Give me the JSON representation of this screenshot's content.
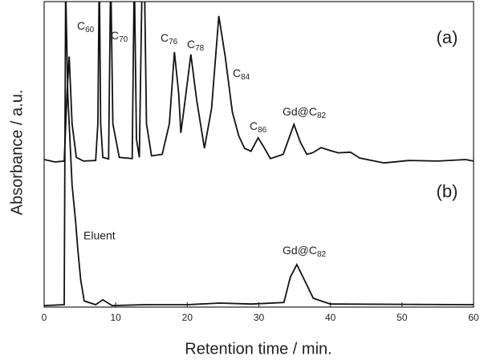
{
  "chart_data": {
    "type": "line",
    "xlabel": "Retention time / min.",
    "ylabel": "Absorbance / a.u.",
    "xlim": [
      0,
      60
    ],
    "xticks": [
      0,
      10,
      20,
      30,
      40,
      50,
      60
    ],
    "ylim": [
      0,
      100
    ],
    "grid": false,
    "color": "#111111",
    "series": [
      {
        "name": "(a)",
        "color": "#111111",
        "x": [
          0,
          1.5,
          2.8,
          3.2,
          3.5,
          3.9,
          4.5,
          5.5,
          7.2,
          7.5,
          7.7,
          7.9,
          8.2,
          9.0,
          9.3,
          9.6,
          10.5,
          12.3,
          12.6,
          12.9,
          13.3,
          13.7,
          14.0,
          14.3,
          15.0,
          16.5,
          17.5,
          18.2,
          18.8,
          19.1,
          19.6,
          20.5,
          21.3,
          22.4,
          23.4,
          24.4,
          25.3,
          26.3,
          27.2,
          28.0,
          28.9,
          29.9,
          30.8,
          31.6,
          33.4,
          34.9,
          35.8,
          36.7,
          37.5,
          38.7,
          40.0,
          41.1,
          42.8,
          44.1,
          47.5,
          51.0,
          55.0,
          58.9,
          60
        ],
        "values": [
          48.3,
          47.5,
          47.8,
          70,
          82,
          60,
          49,
          47.8,
          48,
          60,
          110,
          60,
          49,
          48.5,
          110,
          60,
          49,
          48.6,
          110,
          55,
          49,
          110,
          110,
          60,
          49.5,
          50,
          60,
          83.5,
          70,
          57,
          66,
          82.7,
          68,
          52,
          65,
          95.3,
          82,
          63.8,
          56,
          52,
          51,
          55.4,
          52,
          48.6,
          50,
          59.8,
          54,
          50,
          50.5,
          52.2,
          51.2,
          50.5,
          50.7,
          48.8,
          47.2,
          48,
          47.8,
          48.3,
          47.8
        ]
      },
      {
        "name": "(b)",
        "color": "#111111",
        "x": [
          0,
          2.8,
          3.0,
          3.3,
          3.9,
          4.4,
          4.7,
          5.1,
          5.6,
          7.2,
          8.2,
          9.5,
          14.0,
          20.0,
          24.5,
          29.0,
          33.5,
          34.4,
          35.3,
          36.4,
          37.6,
          40.0,
          60
        ],
        "values": [
          0.5,
          0.8,
          105,
          70,
          40,
          28,
          19,
          9,
          2,
          0.8,
          2.4,
          0.5,
          0.8,
          0.8,
          1.3,
          1.0,
          1.5,
          9.8,
          13.9,
          8.7,
          2.9,
          1.0,
          0.8
        ]
      }
    ],
    "annotations": [
      "C60",
      "C70",
      "C76",
      "C78",
      "C84",
      "C86",
      "Gd@C82",
      "Eluent",
      "Gd@C82"
    ]
  }
}
